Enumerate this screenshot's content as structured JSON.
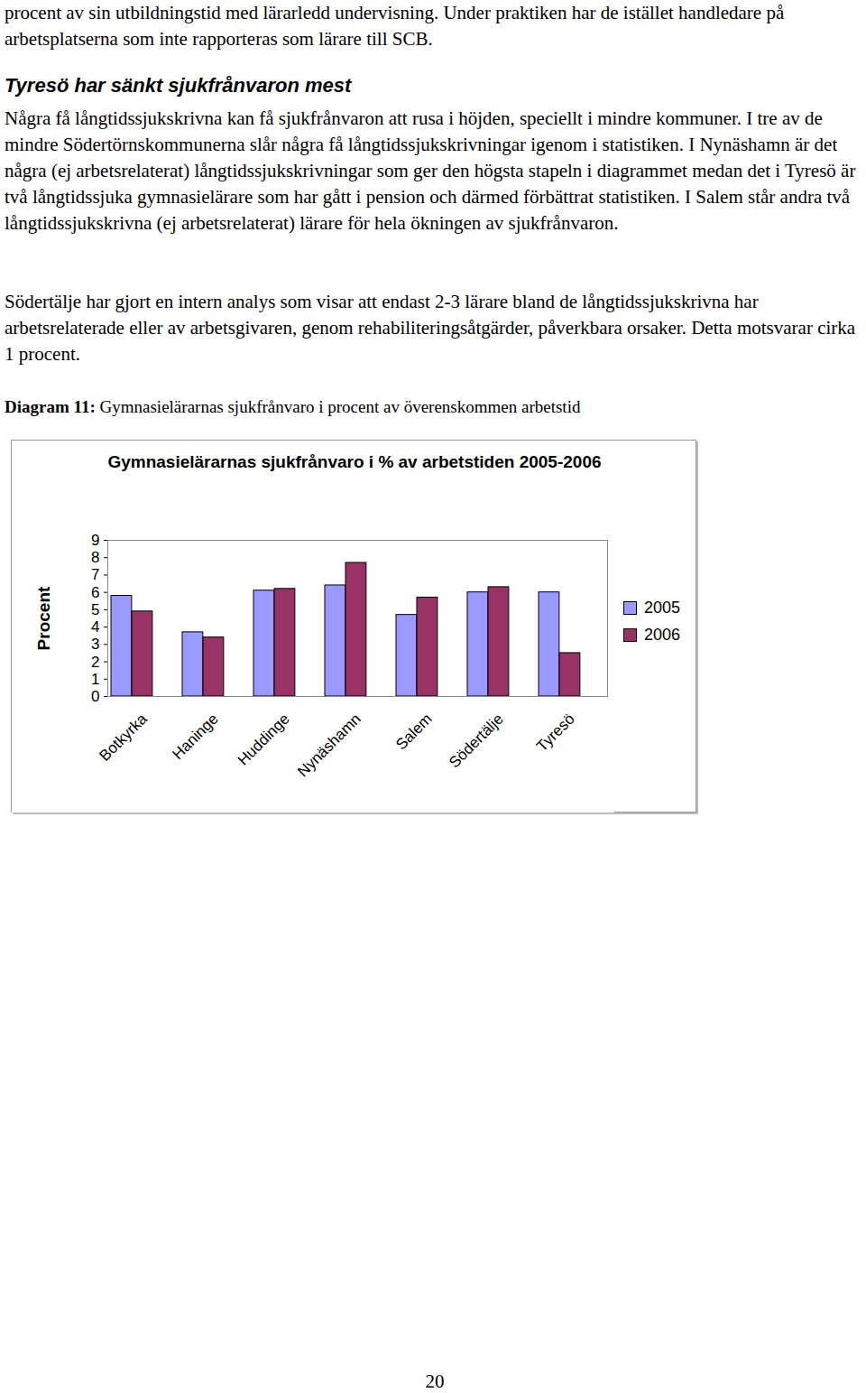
{
  "document": {
    "paragraphs_top": [
      "procent av sin utbildningstid med lärarledd undervisning. Under praktiken har de istället handledare på arbetsplatserna som inte rapporteras som lärare till SCB."
    ],
    "heading": "Tyresö har sänkt sjukfrånvaron mest",
    "paragraphs": [
      "Några få långtidssjukskrivna kan få sjukfrånvaron att rusa i höjden, speciellt i mindre kommuner. I tre av de mindre Södertörnskommunerna slår några få långtidssjukskrivningar igenom i statistiken. I Nynäshamn är det några (ej arbetsrelaterat) långtidssjukskrivningar som ger den högsta  stapeln i diagrammet medan det i Tyresö är två långtidssjuka gymnasielärare som har gått i pension och därmed förbättrat statistiken. I Salem står andra två långtidssjukskrivna (ej arbetsrelaterat) lärare för hela ökningen av sjukfrånvaron.",
      "Södertälje har gjort en intern analys som visar att endast 2-3 lärare bland de långtidssjukskrivna har arbetsrelaterade eller av arbetsgivaren, genom rehabiliteringsåtgärder, påverkbara orsaker. Detta motsvarar cirka 1 procent."
    ],
    "caption_label": "Diagram 11:",
    "caption": "Gymnasielärarnas sjukfrånvaro i procent av överenskommen arbetstid",
    "page_number": "20"
  },
  "chart_data": {
    "type": "bar",
    "title": "Gymnasielärarnas sjukfrånvaro i % av arbetstiden 2005-2006",
    "y_label": "Procent",
    "categories": [
      "Botkyrka",
      "Haninge",
      "Huddinge",
      "Nynäshamn",
      "Salem",
      "Södertälje",
      "Tyresö"
    ],
    "series": [
      {
        "name": "2005",
        "color": "#9999ff",
        "values": [
          5.8,
          3.7,
          6.1,
          6.4,
          4.7,
          6.0,
          6.0
        ]
      },
      {
        "name": "2006",
        "color": "#993366",
        "values": [
          4.9,
          3.4,
          6.2,
          7.7,
          5.7,
          6.3,
          2.5
        ]
      }
    ],
    "ylim": [
      0,
      9
    ],
    "yticks": [
      0,
      1,
      2,
      3,
      4,
      5,
      6,
      7,
      8,
      9
    ],
    "grid": false,
    "legend": "right"
  }
}
